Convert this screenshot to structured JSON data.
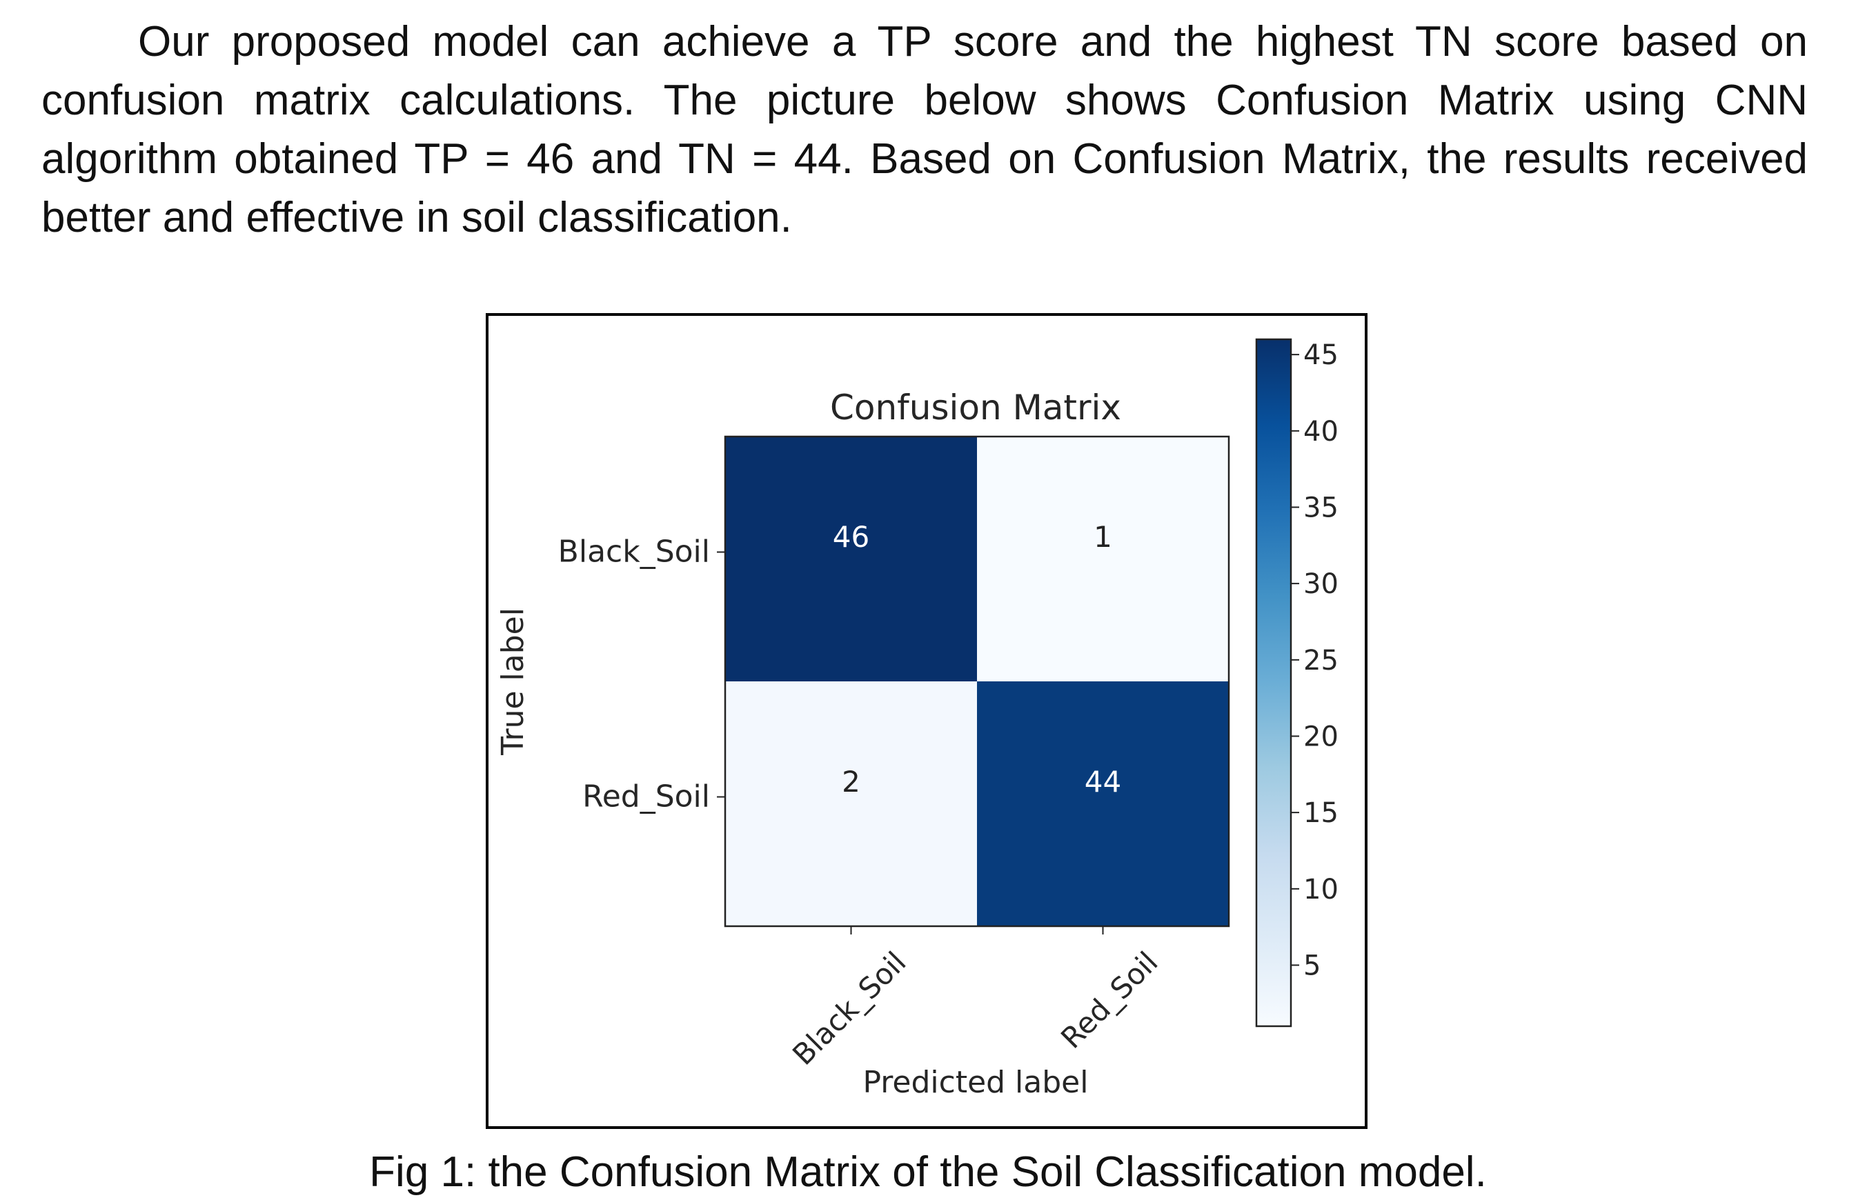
{
  "paragraph": "Our proposed model can achieve a TP score and the highest TN score based on confusion matrix calculations. The picture below shows Confusion Matrix using CNN algorithm obtained TP = 46 and TN = 44. Based on Confusion Matrix, the results received better and effective in soil classification.",
  "caption": "Fig 1: the Confusion Matrix of the Soil Classification model.",
  "chart_data": {
    "type": "heatmap",
    "title": "Confusion Matrix",
    "xlabel": "Predicted label",
    "ylabel": "True label",
    "x_categories": [
      "Black_Soil",
      "Red_Soil"
    ],
    "y_categories": [
      "Black_Soil",
      "Red_Soil"
    ],
    "values": [
      [
        46,
        1
      ],
      [
        2,
        44
      ]
    ],
    "colormap": "Blues",
    "colorbar": {
      "min": 1,
      "max": 46,
      "ticks": [
        5,
        10,
        15,
        20,
        25,
        30,
        35,
        40,
        45
      ]
    },
    "colors": {
      "low": "#f7fbff",
      "high": "#08306b"
    }
  }
}
